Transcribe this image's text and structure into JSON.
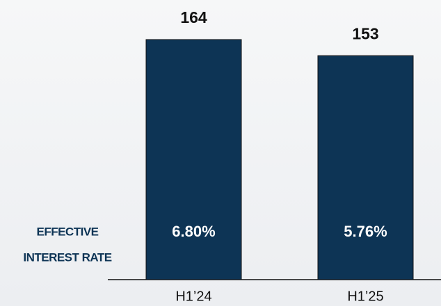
{
  "chart_data": {
    "type": "bar",
    "categories": [
      "H1’24",
      "H1’25"
    ],
    "values": [
      164,
      153
    ],
    "color": "#0d3455",
    "annotation": {
      "label_lines": [
        "EFFECTIVE",
        "INTEREST RATE"
      ],
      "values": [
        6.8,
        5.76
      ],
      "value_labels": [
        "6.80%",
        "5.76%"
      ],
      "color": "#0d3455"
    }
  }
}
